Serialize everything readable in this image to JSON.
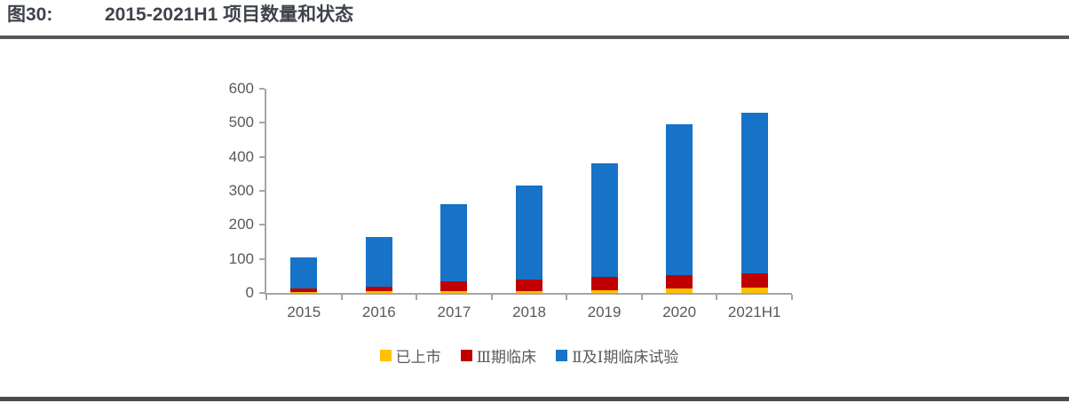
{
  "header": {
    "figure_label": "图30:",
    "title": "2015-2021H1 项目数量和状态"
  },
  "colors": {
    "listed_yellow": "#FFC000",
    "phase3_red": "#C00000",
    "phase12_blue": "#1673C7",
    "axis_gray": "#A6A6A6",
    "tick_label_gray": "#595959",
    "title_dark": "#3E434C",
    "rule_dark": "#54575B"
  },
  "chart_data": {
    "type": "bar",
    "stacked": true,
    "title": "2015-2021H1 项目数量和状态",
    "categories": [
      "2015",
      "2016",
      "2017",
      "2018",
      "2019",
      "2020",
      "2021H1"
    ],
    "series": [
      {
        "name": "已上市",
        "color": "#FFC000",
        "values": [
          3,
          4,
          5,
          6,
          8,
          12,
          15
        ]
      },
      {
        "name": "Ⅲ期临床",
        "color": "#C00000",
        "values": [
          10,
          15,
          28,
          32,
          38,
          40,
          42
        ]
      },
      {
        "name": "Ⅱ及Ⅰ期临床试验",
        "color": "#1673C7",
        "values": [
          92,
          146,
          227,
          277,
          334,
          443,
          473
        ]
      }
    ],
    "totals": [
      105,
      165,
      260,
      315,
      380,
      495,
      530
    ],
    "xlabel": "",
    "ylabel": "",
    "ylim": [
      0,
      600
    ],
    "ytick_step": 100,
    "ytick_labels": [
      "0",
      "100",
      "200",
      "300",
      "400",
      "500",
      "600"
    ],
    "grid": false,
    "legend_position": "bottom"
  }
}
